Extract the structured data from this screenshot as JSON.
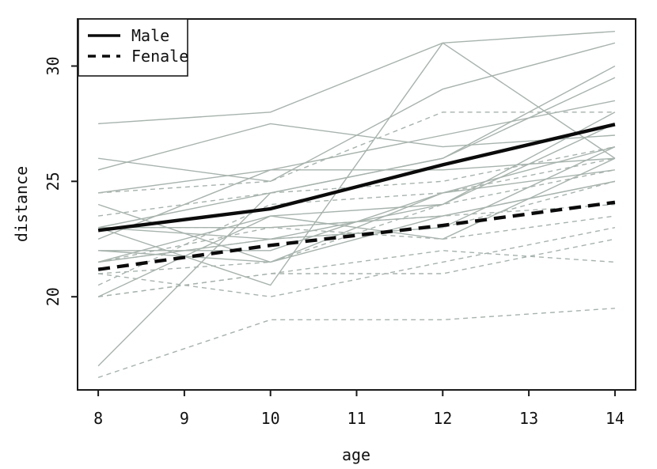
{
  "chart_data": {
    "type": "line",
    "title": "",
    "xlabel": "age",
    "ylabel": "distance",
    "x": [
      8,
      10,
      12,
      14
    ],
    "x_ticks": [
      8,
      9,
      10,
      11,
      12,
      13,
      14
    ],
    "y_ticks": [
      20,
      25,
      30
    ],
    "xlim": [
      7.76,
      14.24
    ],
    "ylim": [
      15.96,
      32.04
    ],
    "grid": false,
    "legend": {
      "position": "topleft",
      "entries": [
        {
          "label": "Male",
          "line_style": "solid"
        },
        {
          "label": "Fenale",
          "line_style": "dashed"
        }
      ]
    },
    "colors": {
      "individual_line": "#a7b3ad",
      "mean_line": "#0b0b0b",
      "axis": "#1a1a1a",
      "background": "#ffffff"
    },
    "male_subjects": [
      [
        26.0,
        25.0,
        29.0,
        31.0
      ],
      [
        21.5,
        22.5,
        23.0,
        26.5
      ],
      [
        23.0,
        22.5,
        24.0,
        27.5
      ],
      [
        25.5,
        27.5,
        26.5,
        27.0
      ],
      [
        20.0,
        23.5,
        22.5,
        26.0
      ],
      [
        24.5,
        25.5,
        27.0,
        28.5
      ],
      [
        22.0,
        22.0,
        24.5,
        26.5
      ],
      [
        24.0,
        21.5,
        24.5,
        25.5
      ],
      [
        23.0,
        20.5,
        31.0,
        26.0
      ],
      [
        27.5,
        28.0,
        31.0,
        31.5
      ],
      [
        23.0,
        23.0,
        23.5,
        25.0
      ],
      [
        21.5,
        23.5,
        24.0,
        28.0
      ],
      [
        17.0,
        24.5,
        26.0,
        29.5
      ],
      [
        22.5,
        25.5,
        25.5,
        26.0
      ],
      [
        23.0,
        24.5,
        26.0,
        30.0
      ],
      [
        22.0,
        21.5,
        23.5,
        25.0
      ]
    ],
    "female_subjects": [
      [
        21.0,
        20.0,
        21.5,
        23.0
      ],
      [
        21.0,
        21.5,
        24.0,
        25.5
      ],
      [
        20.5,
        24.0,
        24.5,
        26.0
      ],
      [
        23.5,
        24.5,
        25.0,
        26.5
      ],
      [
        21.5,
        23.0,
        22.5,
        23.5
      ],
      [
        20.0,
        21.0,
        21.0,
        22.5
      ],
      [
        21.5,
        22.5,
        23.0,
        25.0
      ],
      [
        23.0,
        23.0,
        23.5,
        24.0
      ],
      [
        20.0,
        21.0,
        22.0,
        21.5
      ],
      [
        16.5,
        19.0,
        19.0,
        19.5
      ],
      [
        24.5,
        25.0,
        28.0,
        28.0
      ]
    ],
    "mean_series": [
      {
        "name": "Male",
        "style": "solid",
        "values": [
          22.875,
          23.813,
          25.719,
          27.469
        ]
      },
      {
        "name": "Fenale",
        "style": "dashed",
        "values": [
          21.182,
          22.227,
          23.091,
          24.091
        ]
      }
    ]
  }
}
